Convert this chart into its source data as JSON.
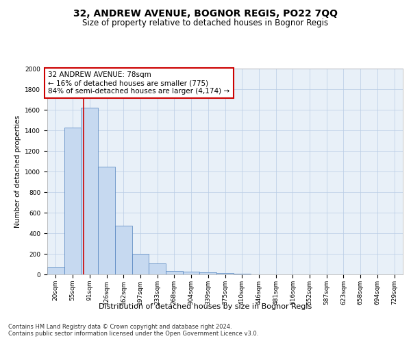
{
  "title": "32, ANDREW AVENUE, BOGNOR REGIS, PO22 7QQ",
  "subtitle": "Size of property relative to detached houses in Bognor Regis",
  "xlabel": "Distribution of detached houses by size in Bognor Regis",
  "ylabel": "Number of detached properties",
  "footer_line1": "Contains HM Land Registry data © Crown copyright and database right 2024.",
  "footer_line2": "Contains public sector information licensed under the Open Government Licence v3.0.",
  "annotation_title": "32 ANDREW AVENUE: 78sqm",
  "annotation_line1": "← 16% of detached houses are smaller (775)",
  "annotation_line2": "84% of semi-detached houses are larger (4,174) →",
  "property_size": 78,
  "bar_labels": [
    "20sqm",
    "55sqm",
    "91sqm",
    "126sqm",
    "162sqm",
    "197sqm",
    "233sqm",
    "268sqm",
    "304sqm",
    "339sqm",
    "375sqm",
    "410sqm",
    "446sqm",
    "481sqm",
    "516sqm",
    "552sqm",
    "587sqm",
    "623sqm",
    "658sqm",
    "694sqm",
    "729sqm"
  ],
  "bar_values": [
    75,
    1425,
    1620,
    1050,
    475,
    200,
    105,
    35,
    30,
    20,
    15,
    5,
    3,
    2,
    2,
    1,
    1,
    1,
    0,
    0,
    0
  ],
  "bar_edges": [
    2.5,
    37.5,
    72.5,
    107.5,
    142.5,
    177.5,
    212.5,
    247.5,
    282.5,
    317.5,
    352.5,
    387.5,
    422.5,
    457.5,
    492.5,
    527.5,
    562.5,
    597.5,
    632.5,
    667.5,
    702.5,
    737.5
  ],
  "bar_color": "#c6d9f0",
  "bar_edgecolor": "#4f81bd",
  "vline_color": "#cc0000",
  "vline_x": 78,
  "annotation_box_color": "#ffffff",
  "annotation_box_edgecolor": "#cc0000",
  "ylim": [
    0,
    2000
  ],
  "yticks": [
    0,
    200,
    400,
    600,
    800,
    1000,
    1200,
    1400,
    1600,
    1800,
    2000
  ],
  "grid_color": "#b8cce4",
  "background_color": "#e8f0f8",
  "title_fontsize": 10,
  "subtitle_fontsize": 8.5,
  "xlabel_fontsize": 8,
  "ylabel_fontsize": 7.5,
  "tick_fontsize": 6.5,
  "annotation_fontsize": 7.5,
  "footer_fontsize": 6
}
